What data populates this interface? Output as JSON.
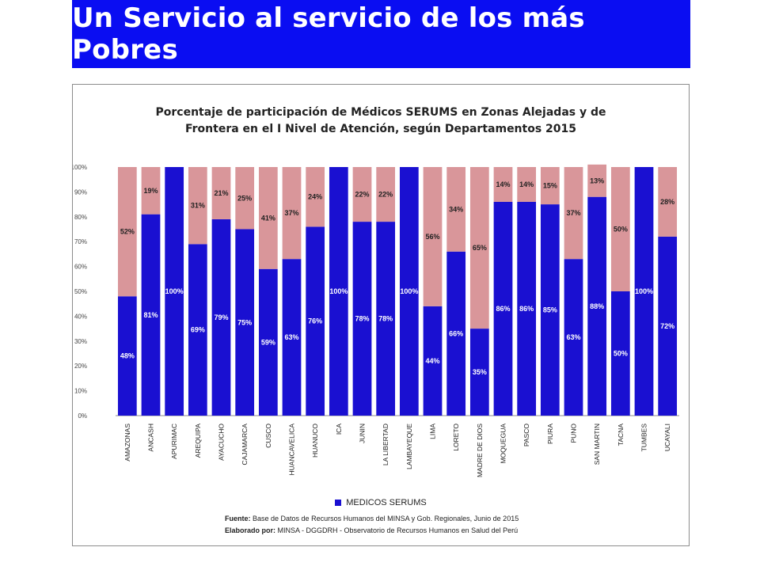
{
  "page": {
    "title": "Un Servicio al servicio de los más Pobres"
  },
  "colors": {
    "banner": "#0a0df2",
    "medicos": "#1a10d1",
    "otros": "#d9969a"
  },
  "chart_data": {
    "type": "bar",
    "stacked": true,
    "title_line1": "Porcentaje de participación de Médicos SERUMS en Zonas Alejadas y de",
    "title_line2": "Frontera en el I Nivel de Atención, según Departamentos 2015",
    "categories": [
      "AMAZONAS",
      "ANCASH",
      "APURIMAC",
      "AREQUIPA",
      "AYACUCHO",
      "CAJAMARCA",
      "CUSCO",
      "HUANCAVELICA",
      "HUANUCO",
      "ICA",
      "JUNIN",
      "LA LIBERTAD",
      "LAMBAYEQUE",
      "LIMA",
      "LORETO",
      "MADRE DE DIOS",
      "MOQUEGUA",
      "PASCO",
      "PIURA",
      "PUNO",
      "SAN MARTIN",
      "TACNA",
      "TUMBES",
      "UCAYALI"
    ],
    "series": [
      {
        "name": "MEDICOS SERUMS",
        "values": [
          48,
          81,
          100,
          69,
          79,
          75,
          59,
          63,
          76,
          100,
          78,
          78,
          100,
          44,
          66,
          35,
          86,
          86,
          85,
          63,
          88,
          50,
          100,
          72
        ]
      },
      {
        "values": [
          52,
          19,
          null,
          31,
          21,
          25,
          41,
          37,
          24,
          null,
          22,
          22,
          null,
          56,
          34,
          65,
          14,
          14,
          15,
          37,
          13,
          50,
          null,
          28
        ]
      }
    ],
    "ylim": [
      0,
      100
    ],
    "yticks": [
      "0%",
      "10%",
      "20%",
      "30%",
      "40%",
      "50%",
      "60%",
      "70%",
      "80%",
      "90%",
      "100%"
    ],
    "legend": "bottom",
    "grid": false
  },
  "footnote": {
    "source_label": "Fuente:",
    "source_text": "Base de Datos de Recursos Humanos del MINSA y Gob. Regionales, Junio de 2015",
    "author_label": "Elaborado por:",
    "author_text": "MINSA - DGGDRH - Observatorio de Recursos Humanos en Salud del Perú"
  }
}
